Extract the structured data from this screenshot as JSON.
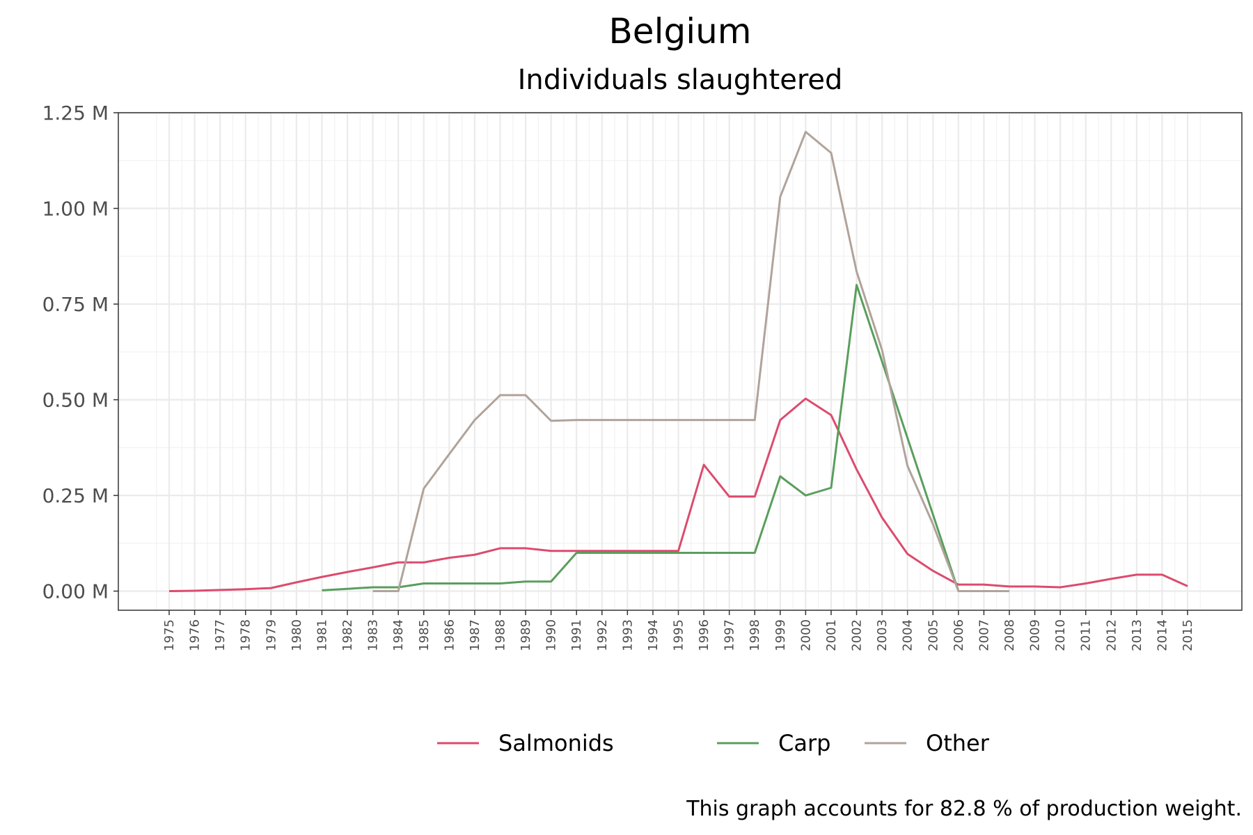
{
  "chart_data": {
    "type": "line",
    "title": "Belgium",
    "subtitle": "Individuals slaughtered",
    "caption": "This graph accounts for 82.8 % of production weight.",
    "x_categories": [
      "1975",
      "1976",
      "1977",
      "1978",
      "1979",
      "1980",
      "1981",
      "1982",
      "1983",
      "1984",
      "1985",
      "1986",
      "1987",
      "1988",
      "1989",
      "1990",
      "1991",
      "1992",
      "1993",
      "1994",
      "1995",
      "1996",
      "1997",
      "1998",
      "1999",
      "2000",
      "2001",
      "2002",
      "2003",
      "2004",
      "2005",
      "2006",
      "2007",
      "2008",
      "2009",
      "2010",
      "2011",
      "2012",
      "2013",
      "2014",
      "2015"
    ],
    "ylim": [
      -0.05,
      1.25
    ],
    "y_ticks": [
      0.0,
      0.25,
      0.5,
      0.75,
      1.0,
      1.25
    ],
    "y_tick_labels": [
      "0.00 M",
      "0.25 M",
      "0.50 M",
      "0.75 M",
      "1.00 M",
      "1.25 M"
    ],
    "y_unit": "M",
    "grid": true,
    "legend_position": "bottom",
    "series": [
      {
        "name": "Salmonids",
        "color": "#dc4b6e",
        "points": [
          [
            1975,
            0.0
          ],
          [
            1976,
            0.001
          ],
          [
            1977,
            0.003
          ],
          [
            1978,
            0.005
          ],
          [
            1979,
            0.008
          ],
          [
            1980,
            0.023
          ],
          [
            1981,
            0.037
          ],
          [
            1982,
            0.05
          ],
          [
            1983,
            0.062
          ],
          [
            1984,
            0.075
          ],
          [
            1985,
            0.075
          ],
          [
            1986,
            0.087
          ],
          [
            1987,
            0.095
          ],
          [
            1988,
            0.112
          ],
          [
            1989,
            0.112
          ],
          [
            1990,
            0.105
          ],
          [
            1991,
            0.105
          ],
          [
            1992,
            0.105
          ],
          [
            1993,
            0.105
          ],
          [
            1994,
            0.105
          ],
          [
            1995,
            0.105
          ],
          [
            1996,
            0.33
          ],
          [
            1997,
            0.247
          ],
          [
            1998,
            0.247
          ],
          [
            1999,
            0.447
          ],
          [
            2000,
            0.503
          ],
          [
            2001,
            0.46
          ],
          [
            2002,
            0.318
          ],
          [
            2003,
            0.192
          ],
          [
            2004,
            0.097
          ],
          [
            2005,
            0.053
          ],
          [
            2006,
            0.017
          ],
          [
            2007,
            0.017
          ],
          [
            2008,
            0.012
          ],
          [
            2009,
            0.012
          ],
          [
            2010,
            0.01
          ],
          [
            2011,
            0.02
          ],
          [
            2012,
            0.032
          ],
          [
            2013,
            0.043
          ],
          [
            2014,
            0.043
          ],
          [
            2015,
            0.013
          ]
        ]
      },
      {
        "name": "Carp",
        "color": "#5a9e5d",
        "points": [
          [
            1981,
            0.002
          ],
          [
            1982,
            0.006
          ],
          [
            1983,
            0.01
          ],
          [
            1984,
            0.01
          ],
          [
            1985,
            0.02
          ],
          [
            1986,
            0.02
          ],
          [
            1987,
            0.02
          ],
          [
            1988,
            0.02
          ],
          [
            1989,
            0.025
          ],
          [
            1990,
            0.025
          ],
          [
            1991,
            0.1
          ],
          [
            1992,
            0.1
          ],
          [
            1993,
            0.1
          ],
          [
            1994,
            0.1
          ],
          [
            1995,
            0.1
          ],
          [
            1996,
            0.1
          ],
          [
            1997,
            0.1
          ],
          [
            1998,
            0.1
          ],
          [
            1999,
            0.3
          ],
          [
            2000,
            0.25
          ],
          [
            2001,
            0.27
          ],
          [
            2002,
            0.8
          ],
          [
            2003,
            0.6
          ],
          [
            2004,
            0.4
          ],
          [
            2005,
            0.2
          ],
          [
            2006,
            0.0
          ]
        ]
      },
      {
        "name": "Other",
        "color": "#b0a39a",
        "points": [
          [
            1983,
            0.0
          ],
          [
            1984,
            0.0
          ],
          [
            1985,
            0.268
          ],
          [
            1986,
            0.358
          ],
          [
            1987,
            0.447
          ],
          [
            1988,
            0.512
          ],
          [
            1989,
            0.512
          ],
          [
            1990,
            0.445
          ],
          [
            1991,
            0.447
          ],
          [
            1992,
            0.447
          ],
          [
            1993,
            0.447
          ],
          [
            1994,
            0.447
          ],
          [
            1995,
            0.447
          ],
          [
            1996,
            0.447
          ],
          [
            1997,
            0.447
          ],
          [
            1998,
            0.447
          ],
          [
            1999,
            1.03
          ],
          [
            2000,
            1.2
          ],
          [
            2001,
            1.145
          ],
          [
            2002,
            0.835
          ],
          [
            2003,
            0.63
          ],
          [
            2004,
            0.327
          ],
          [
            2005,
            0.175
          ],
          [
            2006,
            0.0
          ],
          [
            2007,
            0.0
          ],
          [
            2008,
            0.0
          ]
        ]
      }
    ]
  }
}
